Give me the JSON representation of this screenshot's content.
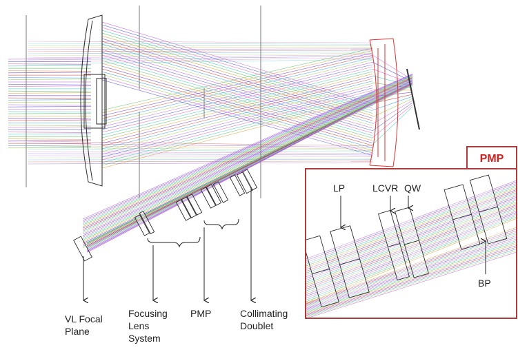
{
  "colors": {
    "inset_border": "#b03a3a",
    "mirror": "#e03030",
    "element_outline": "#2a2a2a",
    "label_text": "#222222",
    "ray_palette": [
      "#c060e0",
      "#5a5ae8",
      "#e060c0",
      "#40c8c0",
      "#60c060",
      "#e0a040",
      "#8040c0",
      "#d04040",
      "#40a0e0",
      "#a0d060"
    ]
  },
  "inset": {
    "title": "PMP",
    "labels": {
      "lp": "LP",
      "lcvr": "LCVR",
      "qw": "QW",
      "bp": "BP"
    }
  },
  "labels": {
    "vl_focal_plane": [
      "VL Focal",
      "Plane"
    ],
    "focusing_lens_system": [
      "Focusing",
      "Lens",
      "System"
    ],
    "pmp": "PMP",
    "collimating_doublet": [
      "Collimating",
      "Doublet"
    ]
  },
  "icons": {
    "arrowhead": "arrowhead-icon",
    "bracket": "bracket-icon"
  }
}
